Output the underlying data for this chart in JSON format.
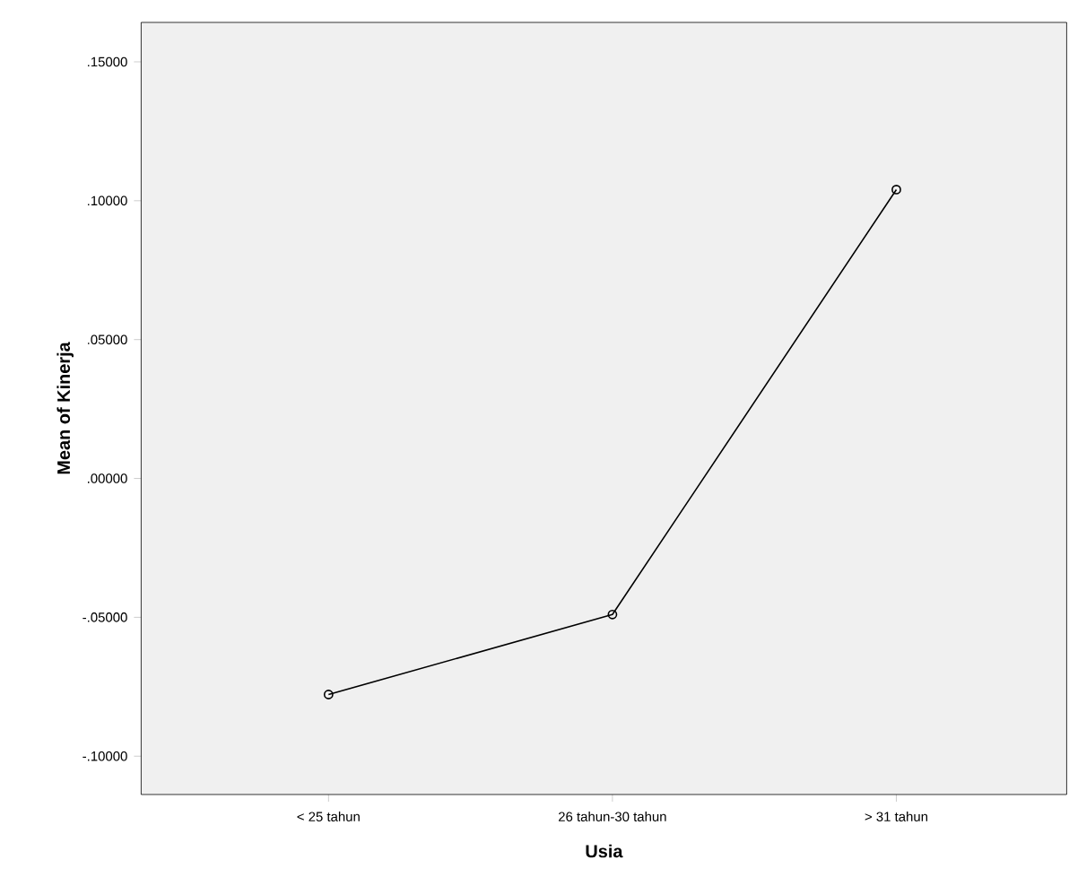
{
  "chart_data": {
    "type": "line",
    "xlabel": "Usia",
    "ylabel": "Mean of Kinerja",
    "categories": [
      "< 25 tahun",
      "26 tahun-30 tahun",
      "> 31 tahun"
    ],
    "series": [
      {
        "color": "#000000",
        "values": [
          -0.0778,
          -0.049,
          0.104
        ]
      }
    ],
    "ylim": [
      -0.1138,
      0.1642
    ],
    "yticks": [
      {
        "value": -0.1,
        "label": "-.10000"
      },
      {
        "value": -0.05,
        "label": "-.05000"
      },
      {
        "value": 0,
        "label": ".00000"
      },
      {
        "value": 0.05,
        "label": ".05000"
      },
      {
        "value": 0.1,
        "label": ".10000"
      },
      {
        "value": 0.15,
        "label": ".15000"
      }
    ],
    "marker": "circle",
    "line_style": "solid",
    "grid": false
  }
}
